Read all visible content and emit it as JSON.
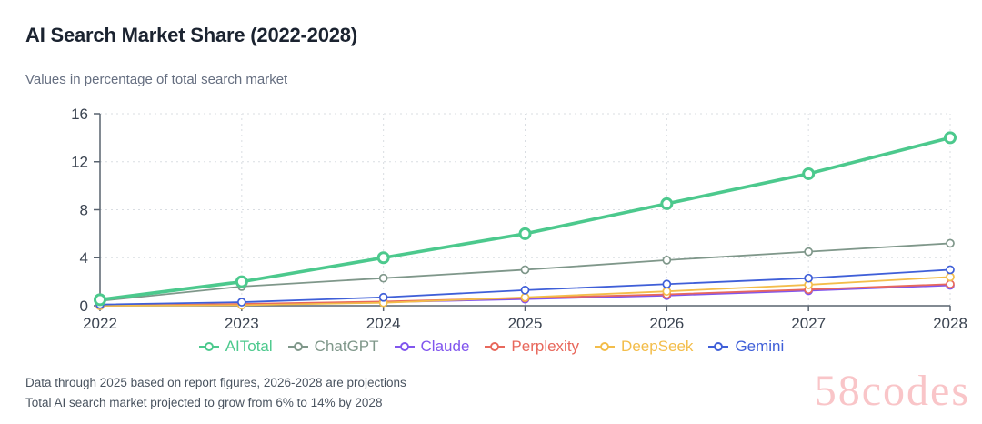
{
  "page": {
    "title": "AI Search Market Share (2022-2028)",
    "subtitle": "Values in percentage of total search market",
    "footnote_1": "Data through 2025 based on report figures, 2026-2028 are projections",
    "footnote_2": "Total AI search market projected to grow from 6% to 14% by 2028",
    "watermark": "58codes"
  },
  "chart_data": {
    "type": "line",
    "title": "AI Search Market Share (2022-2028)",
    "subtitle": "Values in percentage of total search market",
    "x": [
      "2022",
      "2023",
      "2024",
      "2025",
      "2026",
      "2027",
      "2028"
    ],
    "series": [
      {
        "name": "AITotal",
        "color": "#4cc98d",
        "main": true,
        "values": [
          0.5,
          2,
          4,
          6,
          8.5,
          11,
          14
        ]
      },
      {
        "name": "ChatGPT",
        "color": "#7f978a",
        "main": false,
        "values": [
          0.4,
          1.6,
          2.3,
          3,
          3.8,
          4.5,
          5.2
        ]
      },
      {
        "name": "Claude",
        "color": "#8156ee",
        "main": false,
        "values": [
          0,
          0.1,
          0.3,
          0.55,
          0.85,
          1.25,
          1.7
        ]
      },
      {
        "name": "Perplexity",
        "color": "#e8685c",
        "main": false,
        "values": [
          0,
          0.15,
          0.35,
          0.65,
          0.95,
          1.35,
          1.8
        ]
      },
      {
        "name": "DeepSeek",
        "color": "#f3bd4a",
        "main": false,
        "values": [
          0,
          0.05,
          0.25,
          0.7,
          1.2,
          1.75,
          2.4
        ]
      },
      {
        "name": "Gemini",
        "color": "#3f5fd8",
        "main": false,
        "values": [
          0.1,
          0.3,
          0.7,
          1.3,
          1.8,
          2.3,
          3
        ]
      }
    ],
    "xlabel": "",
    "ylabel": "",
    "ylim": [
      0,
      16
    ],
    "yticks": [
      0,
      4,
      8,
      12,
      16
    ],
    "grid": "dashed",
    "legend_position": "bottom",
    "axis_color": "#59636f",
    "grid_color": "#d9dde2"
  }
}
